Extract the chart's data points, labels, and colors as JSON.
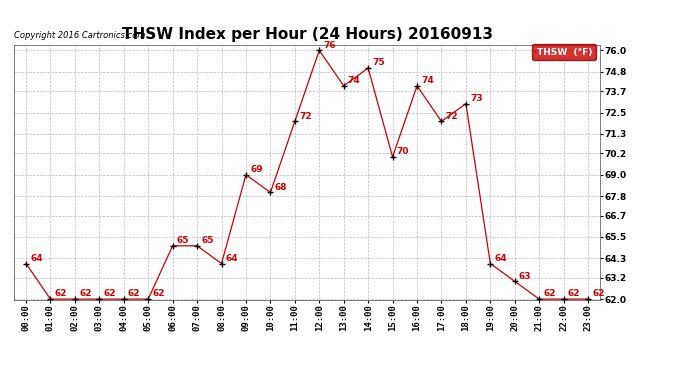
{
  "title": "THSW Index per Hour (24 Hours) 20160913",
  "copyright": "Copyright 2016 Cartronics.com",
  "legend_label": "THSW  (°F)",
  "hours": [
    "00:00",
    "01:00",
    "02:00",
    "03:00",
    "04:00",
    "05:00",
    "06:00",
    "07:00",
    "08:00",
    "09:00",
    "10:00",
    "11:00",
    "12:00",
    "13:00",
    "14:00",
    "15:00",
    "16:00",
    "17:00",
    "18:00",
    "19:00",
    "20:00",
    "21:00",
    "22:00",
    "23:00"
  ],
  "values": [
    64,
    62,
    62,
    62,
    62,
    62,
    65,
    65,
    64,
    69,
    68,
    72,
    76,
    74,
    75,
    70,
    74,
    72,
    73,
    64,
    63,
    62,
    62,
    62
  ],
  "ylim_min": 62.0,
  "ylim_max": 76.0,
  "yticks": [
    62.0,
    63.2,
    64.3,
    65.5,
    66.7,
    67.8,
    69.0,
    70.2,
    71.3,
    72.5,
    73.7,
    74.8,
    76.0
  ],
  "ytick_labels": [
    "62.0",
    "63.2",
    "64.3",
    "65.5",
    "66.7",
    "67.8",
    "69.0",
    "70.2",
    "71.3",
    "72.5",
    "73.7",
    "74.8",
    "76.0"
  ],
  "line_color": "#cc0000",
  "marker_color": "#000000",
  "bg_color": "#ffffff",
  "grid_color": "#bbbbbb",
  "title_fontsize": 11,
  "tick_fontsize": 6.5,
  "annotation_fontsize": 6.5,
  "legend_bg": "#cc0000",
  "legend_text_color": "#ffffff"
}
